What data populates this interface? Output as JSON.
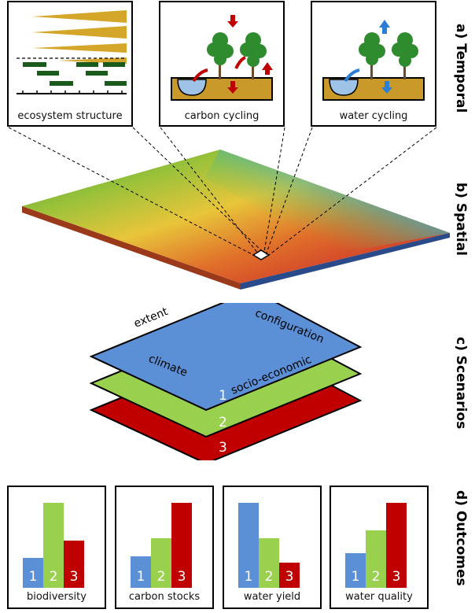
{
  "section_labels": {
    "temporal": "a) Temporal",
    "spatial": "b) Spatial",
    "scenarios": "c) Scenarios",
    "outcomes": "d) Outcomes"
  },
  "temporal_panels": {
    "ecosystem": "ecosystem structure",
    "carbon": "carbon cycling",
    "water": "water cycling"
  },
  "scenario_layers": {
    "extent": "extent",
    "configuration": "configuration",
    "climate": "climate",
    "socio_economic": "socio-economic",
    "layer_numbers": [
      "1",
      "2",
      "3"
    ]
  },
  "outcome_panels": [
    {
      "title": "biodiversity",
      "bar_numbers": [
        "1",
        "2",
        "3"
      ],
      "bar_heights": [
        0.35,
        1.0,
        0.56
      ]
    },
    {
      "title": "carbon stocks",
      "bar_numbers": [
        "1",
        "2",
        "3"
      ],
      "bar_heights": [
        0.37,
        0.58,
        1.0
      ]
    },
    {
      "title": "water yield",
      "bar_numbers": [
        "1",
        "2",
        "3"
      ],
      "bar_heights": [
        1.0,
        0.58,
        0.3
      ]
    },
    {
      "title": "water quality",
      "bar_numbers": [
        "1",
        "2",
        "3"
      ],
      "bar_heights": [
        0.41,
        0.68,
        1.0
      ]
    }
  ],
  "colors": {
    "blue": "#5b8fd6",
    "green": "#99d04e",
    "red": "#c00000",
    "gold": "#d4a62a",
    "dark_green": "#1a5a1a",
    "soil": "#c99a2a"
  }
}
